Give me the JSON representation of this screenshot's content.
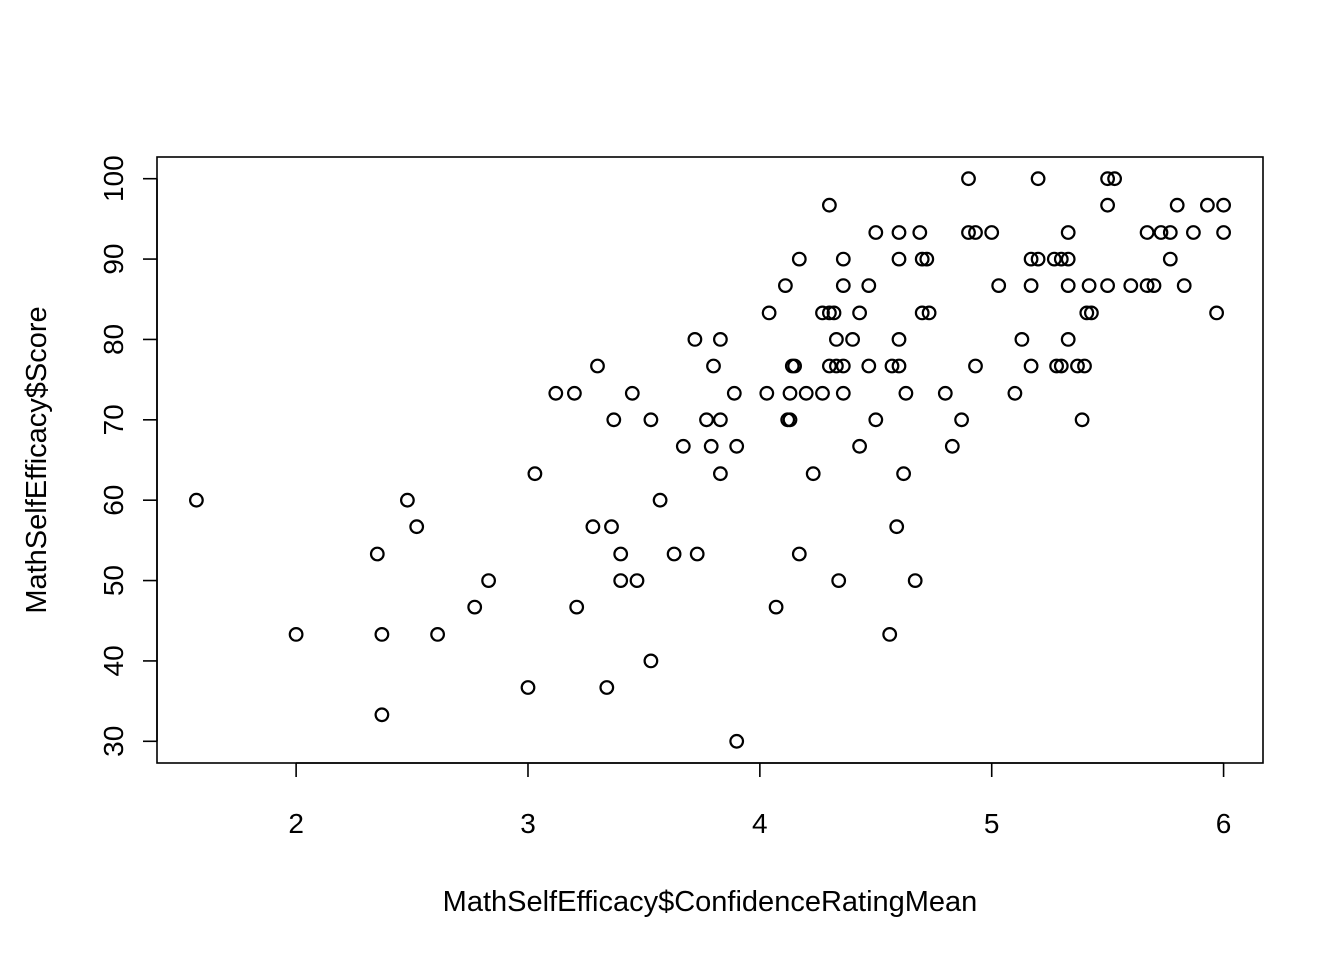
{
  "chart_data": {
    "type": "scatter",
    "title": "",
    "xlabel": "MathSelfEfficacy$ConfidenceRatingMean",
    "ylabel": "MathSelfEfficacy$Score",
    "xlim": [
      1.4,
      6.17
    ],
    "ylim": [
      27.3,
      102.7
    ],
    "xticks": [
      2,
      3,
      4,
      5,
      6
    ],
    "yticks": [
      30,
      40,
      50,
      60,
      70,
      80,
      90,
      100
    ],
    "grid": false,
    "legend": "none",
    "points": [
      [
        1.57,
        60
      ],
      [
        2.0,
        43.3
      ],
      [
        2.35,
        53.3
      ],
      [
        2.37,
        43.3
      ],
      [
        2.37,
        33.3
      ],
      [
        2.48,
        60
      ],
      [
        2.52,
        56.7
      ],
      [
        2.61,
        43.3
      ],
      [
        2.77,
        46.7
      ],
      [
        2.83,
        50
      ],
      [
        3.0,
        36.7
      ],
      [
        3.03,
        63.3
      ],
      [
        3.12,
        73.3
      ],
      [
        3.2,
        73.3
      ],
      [
        3.21,
        46.7
      ],
      [
        3.28,
        56.7
      ],
      [
        3.3,
        76.7
      ],
      [
        3.34,
        36.7
      ],
      [
        3.36,
        56.7
      ],
      [
        3.37,
        70
      ],
      [
        3.4,
        53.3
      ],
      [
        3.4,
        50
      ],
      [
        3.45,
        73.3
      ],
      [
        3.47,
        50
      ],
      [
        3.53,
        70
      ],
      [
        3.53,
        40
      ],
      [
        3.57,
        60
      ],
      [
        3.63,
        53.3
      ],
      [
        3.67,
        66.7
      ],
      [
        3.72,
        80
      ],
      [
        3.73,
        53.3
      ],
      [
        3.77,
        70
      ],
      [
        3.79,
        66.7
      ],
      [
        3.8,
        76.7
      ],
      [
        3.83,
        80
      ],
      [
        3.83,
        70
      ],
      [
        3.83,
        63.3
      ],
      [
        3.89,
        73.3
      ],
      [
        3.9,
        66.7
      ],
      [
        3.9,
        30
      ],
      [
        4.03,
        73.3
      ],
      [
        4.04,
        83.3
      ],
      [
        4.07,
        46.7
      ],
      [
        4.11,
        86.7
      ],
      [
        4.12,
        70
      ],
      [
        4.13,
        70
      ],
      [
        4.13,
        73.3
      ],
      [
        4.14,
        76.7
      ],
      [
        4.15,
        76.7
      ],
      [
        4.17,
        90
      ],
      [
        4.17,
        53.3
      ],
      [
        4.2,
        73.3
      ],
      [
        4.23,
        63.3
      ],
      [
        4.27,
        83.3
      ],
      [
        4.27,
        73.3
      ],
      [
        4.3,
        96.7
      ],
      [
        4.3,
        83.3
      ],
      [
        4.3,
        76.7
      ],
      [
        4.32,
        83.3
      ],
      [
        4.33,
        80
      ],
      [
        4.33,
        76.7
      ],
      [
        4.34,
        50
      ],
      [
        4.36,
        90
      ],
      [
        4.36,
        86.7
      ],
      [
        4.36,
        76.7
      ],
      [
        4.36,
        73.3
      ],
      [
        4.4,
        80
      ],
      [
        4.43,
        83.3
      ],
      [
        4.43,
        66.7
      ],
      [
        4.47,
        86.7
      ],
      [
        4.47,
        76.7
      ],
      [
        4.5,
        93.3
      ],
      [
        4.5,
        70
      ],
      [
        4.56,
        43.3
      ],
      [
        4.57,
        76.7
      ],
      [
        4.59,
        56.7
      ],
      [
        4.6,
        93.3
      ],
      [
        4.6,
        90
      ],
      [
        4.6,
        80
      ],
      [
        4.6,
        76.7
      ],
      [
        4.62,
        63.3
      ],
      [
        4.63,
        73.3
      ],
      [
        4.67,
        50
      ],
      [
        4.69,
        93.3
      ],
      [
        4.7,
        90
      ],
      [
        4.7,
        83.3
      ],
      [
        4.72,
        90
      ],
      [
        4.73,
        83.3
      ],
      [
        4.8,
        73.3
      ],
      [
        4.83,
        66.7
      ],
      [
        4.87,
        70
      ],
      [
        4.9,
        100
      ],
      [
        4.9,
        93.3
      ],
      [
        4.93,
        93.3
      ],
      [
        4.93,
        76.7
      ],
      [
        5.0,
        93.3
      ],
      [
        5.03,
        86.7
      ],
      [
        5.1,
        73.3
      ],
      [
        5.13,
        80
      ],
      [
        5.17,
        90
      ],
      [
        5.17,
        86.7
      ],
      [
        5.17,
        76.7
      ],
      [
        5.2,
        100
      ],
      [
        5.2,
        90
      ],
      [
        5.27,
        90
      ],
      [
        5.28,
        76.7
      ],
      [
        5.3,
        76.7
      ],
      [
        5.3,
        90
      ],
      [
        5.33,
        93.3
      ],
      [
        5.33,
        90
      ],
      [
        5.33,
        86.7
      ],
      [
        5.33,
        80
      ],
      [
        5.37,
        76.7
      ],
      [
        5.4,
        76.7
      ],
      [
        5.39,
        70
      ],
      [
        5.41,
        83.3
      ],
      [
        5.42,
        86.7
      ],
      [
        5.43,
        83.3
      ],
      [
        5.5,
        100
      ],
      [
        5.5,
        96.7
      ],
      [
        5.5,
        86.7
      ],
      [
        5.53,
        100
      ],
      [
        5.6,
        86.7
      ],
      [
        5.67,
        93.3
      ],
      [
        5.67,
        86.7
      ],
      [
        5.7,
        86.7
      ],
      [
        5.73,
        93.3
      ],
      [
        5.77,
        93.3
      ],
      [
        5.77,
        90
      ],
      [
        5.8,
        96.7
      ],
      [
        5.83,
        86.7
      ],
      [
        5.87,
        93.3
      ],
      [
        5.93,
        96.7
      ],
      [
        5.97,
        83.3
      ],
      [
        6.0,
        96.7
      ],
      [
        6.0,
        93.3
      ]
    ]
  }
}
